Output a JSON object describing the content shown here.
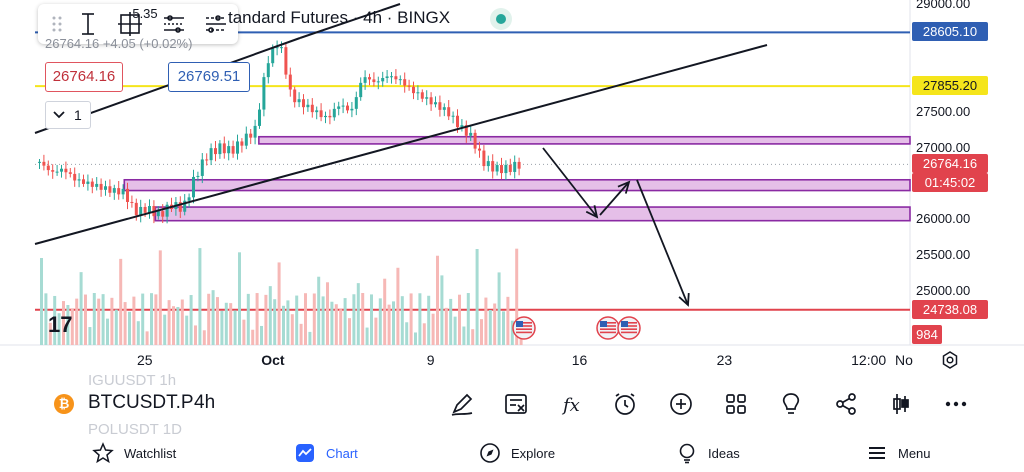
{
  "header": {
    "title_fragment": "tandard Futures · 4h · BINGX",
    "ohlc_fragment": "26764.16 +4.05 (+0.02%)",
    "bid": "26764.16",
    "spread": "5.35",
    "ask": "26769.51",
    "collapse_count": "1"
  },
  "chart_data": {
    "type": "candlestick",
    "symbol": "BTCUSDT.P",
    "interval": "4h",
    "y_axis": {
      "range": [
        24400,
        29000
      ],
      "ticks": [
        "29000.00",
        "27500.00",
        "27000.00",
        "26000.00",
        "25500.00",
        "25000.00"
      ]
    },
    "x_axis": {
      "ticks": [
        "25",
        "Oct",
        "9",
        "16",
        "23",
        "12:00",
        "No"
      ],
      "tick_positions_hint_days_from_sep25": [
        0,
        6,
        14,
        21,
        28,
        34.5,
        39
      ]
    },
    "price_tags": [
      {
        "label": "28605.10",
        "value": 28605.1,
        "color": "#2f5fb3"
      },
      {
        "label": "27855.20",
        "value": 27855.2,
        "color": "#f5e51b"
      },
      {
        "label": "26764.16",
        "value": 26764.16,
        "color": "#e1434d",
        "countdown": "01:45:02"
      },
      {
        "label": "24738.08",
        "value": 24738.08,
        "color": "#e1434d"
      },
      {
        "label": "984",
        "value": 24380,
        "color": "#e1434d"
      }
    ],
    "horizontal_lines": [
      {
        "value": 28605.1,
        "color": "#2f5fb3"
      },
      {
        "value": 27855.2,
        "color": "#f5e51b"
      },
      {
        "value": 24738.08,
        "color": "#e1434d"
      }
    ],
    "zones": [
      {
        "from": 27050,
        "to": 27150,
        "start_day": 5.5
      },
      {
        "from": 26400,
        "to": 26550,
        "start_day": -1
      },
      {
        "from": 25980,
        "to": 26170,
        "start_day": 0.5
      }
    ],
    "candles_close_path": [
      26800,
      26650,
      26700,
      26550,
      26500,
      26450,
      26400,
      26380,
      26100,
      26150,
      26050,
      26200,
      26150,
      26600,
      26900,
      27000,
      26950,
      27100,
      27250,
      28200,
      28500,
      27700,
      27600,
      27500,
      27400,
      27600,
      27500,
      28000,
      27900,
      28000,
      27950,
      27800,
      27700,
      27600,
      27500,
      27300,
      27150,
      26800,
      26700,
      26700,
      26764
    ],
    "volume_max": 110
  },
  "toolbar": {
    "symbol": "BTCUSDT.P",
    "timeframe": "4h",
    "ghost_above": "IGUUSDT 1h",
    "ghost_below": "POLUSDT 1D",
    "icons": [
      "pen-icon",
      "news-icon",
      "function-icon",
      "alert-icon",
      "add-icon",
      "layouts-icon",
      "ideas-bulb-icon",
      "share-icon",
      "candle-type-icon",
      "more-icon"
    ]
  },
  "nav": {
    "watchlist": "Watchlist",
    "chart": "Chart",
    "explore": "Explore",
    "ideas": "Ideas",
    "menu": "Menu"
  },
  "colors": {
    "up": "#26a69a",
    "down": "#ef5350",
    "zone_fill": "#e5bfe8",
    "zone_border": "#8a2aa3"
  }
}
